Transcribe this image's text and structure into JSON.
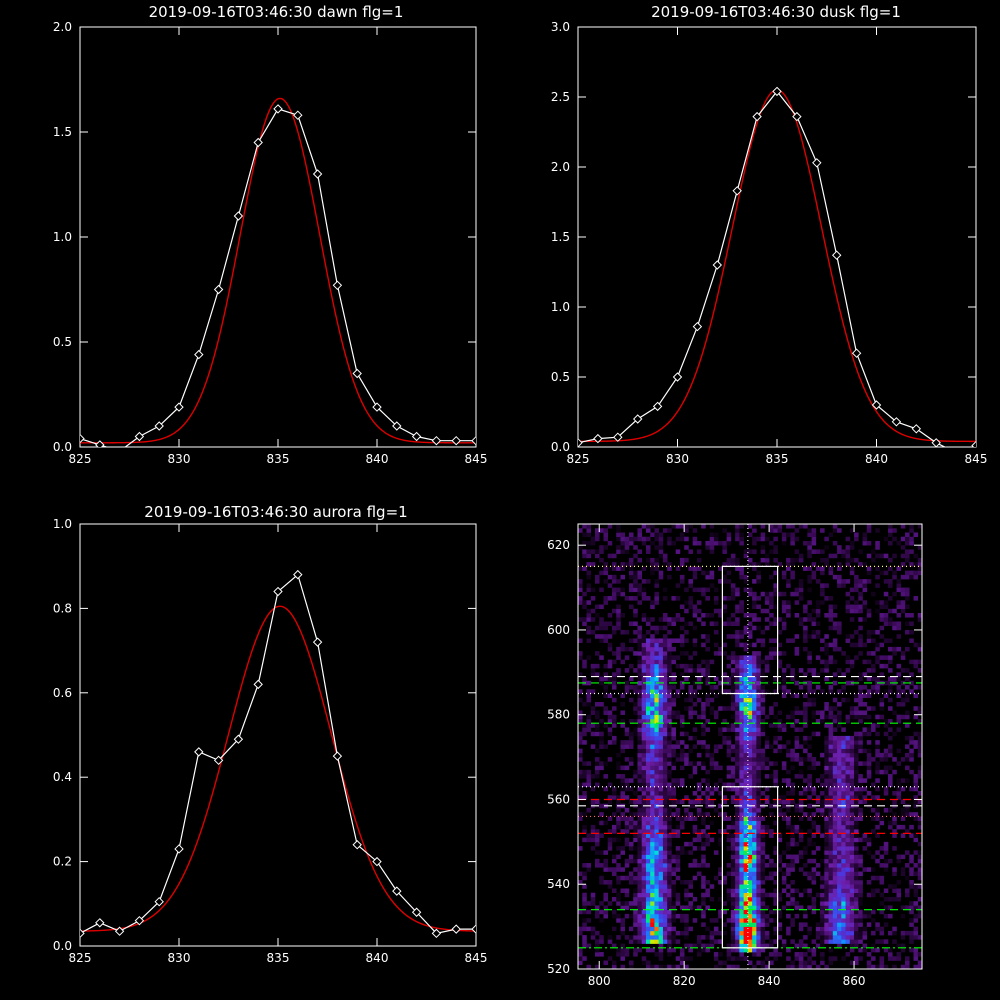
{
  "chart_data": [
    {
      "type": "line",
      "title": "2019-09-16T03:46:30 dawn flg=1",
      "xlim": [
        825,
        845
      ],
      "ylim": [
        0,
        2.0
      ],
      "x_ticks": [
        825,
        830,
        835,
        840,
        845
      ],
      "y_ticks": [
        0.0,
        0.5,
        1.0,
        1.5,
        2.0
      ],
      "y_tick_labels": [
        "0.0",
        "0.5",
        "1.0",
        "1.5",
        "2.0"
      ],
      "series": [
        {
          "kind": "data",
          "color": "#ffffff",
          "marker": "diamond",
          "x": [
            825,
            826,
            827,
            828,
            829,
            830,
            831,
            832,
            833,
            834,
            835,
            836,
            837,
            838,
            839,
            840,
            841,
            842,
            843,
            844,
            845
          ],
          "y": [
            0.04,
            0.01,
            -0.02,
            0.05,
            0.1,
            0.19,
            0.44,
            0.75,
            1.1,
            1.45,
            1.61,
            1.58,
            1.3,
            0.77,
            0.35,
            0.19,
            0.1,
            0.05,
            0.03,
            0.03,
            0.03
          ]
        },
        {
          "kind": "fit",
          "color": "#dd0000",
          "center": 835.1,
          "amplitude": 1.64,
          "sigma": 2.0,
          "baseline": 0.02
        }
      ]
    },
    {
      "type": "line",
      "title": "2019-09-16T03:46:30 dusk flg=1",
      "xlim": [
        825,
        845
      ],
      "ylim": [
        0,
        3.0
      ],
      "x_ticks": [
        825,
        830,
        835,
        840,
        845
      ],
      "y_ticks": [
        0.0,
        0.5,
        1.0,
        1.5,
        2.0,
        2.5,
        3.0
      ],
      "y_tick_labels": [
        "0.0",
        "0.5",
        "1.0",
        "1.5",
        "2.0",
        "2.5",
        "3.0"
      ],
      "series": [
        {
          "kind": "data",
          "color": "#ffffff",
          "marker": "diamond",
          "x": [
            825,
            826,
            827,
            828,
            829,
            830,
            831,
            832,
            833,
            834,
            835,
            836,
            837,
            838,
            839,
            840,
            841,
            842,
            843,
            844,
            845
          ],
          "y": [
            0.03,
            0.06,
            0.07,
            0.2,
            0.29,
            0.5,
            0.86,
            1.3,
            1.83,
            2.36,
            2.54,
            2.36,
            2.03,
            1.37,
            0.67,
            0.3,
            0.18,
            0.13,
            0.03,
            -0.04,
            0.01
          ]
        },
        {
          "kind": "fit",
          "color": "#dd0000",
          "center": 835.0,
          "amplitude": 2.51,
          "sigma": 2.25,
          "baseline": 0.04
        }
      ]
    },
    {
      "type": "line",
      "title": "2019-09-16T03:46:30 aurora flg=1",
      "xlim": [
        825,
        845
      ],
      "ylim": [
        0,
        1.0
      ],
      "x_ticks": [
        825,
        830,
        835,
        840,
        845
      ],
      "y_ticks": [
        0.0,
        0.2,
        0.4,
        0.6,
        0.8,
        1.0
      ],
      "y_tick_labels": [
        "0.0",
        "0.2",
        "0.4",
        "0.6",
        "0.8",
        "1.0"
      ],
      "series": [
        {
          "kind": "data",
          "color": "#ffffff",
          "marker": "diamond",
          "x": [
            825,
            826,
            827,
            828,
            829,
            830,
            831,
            832,
            833,
            834,
            835,
            836,
            837,
            838,
            839,
            840,
            841,
            842,
            843,
            844,
            845
          ],
          "y": [
            0.03,
            0.055,
            0.035,
            0.06,
            0.105,
            0.23,
            0.46,
            0.44,
            0.49,
            0.62,
            0.84,
            0.88,
            0.72,
            0.45,
            0.24,
            0.2,
            0.13,
            0.08,
            0.03,
            0.04,
            0.04
          ]
        },
        {
          "kind": "fit",
          "color": "#dd0000",
          "center": 835.1,
          "amplitude": 0.77,
          "sigma": 2.6,
          "baseline": 0.035
        }
      ]
    },
    {
      "type": "heatmap",
      "title": "",
      "xlim": [
        795,
        876
      ],
      "ylim": [
        520,
        625
      ],
      "x_ticks": [
        800,
        820,
        840,
        860
      ],
      "y_ticks": [
        520,
        540,
        560,
        580,
        600,
        620
      ],
      "colormap": "rainbow",
      "columns": [
        {
          "center": 813,
          "width": 3.5,
          "y_range": [
            526,
            598
          ],
          "peaks": [
            {
              "y": 529,
              "amp": 0.55
            },
            {
              "y": 582,
              "amp": 0.45
            },
            {
              "y": 545,
              "amp": 0.3
            }
          ]
        },
        {
          "center": 835,
          "width": 2.8,
          "y_range": [
            524,
            594
          ],
          "peaks": [
            {
              "y": 530,
              "amp": 1.0
            },
            {
              "y": 584,
              "amp": 0.5
            },
            {
              "y": 548,
              "amp": 0.6
            }
          ]
        },
        {
          "center": 857,
          "width": 4.0,
          "y_range": [
            526,
            575
          ],
          "peaks": [
            {
              "y": 530,
              "amp": 0.25
            }
          ]
        }
      ],
      "vertical_line": {
        "x": 835,
        "color": "#ffffff",
        "style": "dotted"
      },
      "boxes": [
        {
          "x": [
            829,
            842
          ],
          "y": [
            585,
            615
          ],
          "color": "#ffffff"
        },
        {
          "x": [
            829,
            842
          ],
          "y": [
            525,
            563
          ],
          "color": "#ffffff"
        }
      ],
      "hlines": [
        {
          "y": 615,
          "color": "#ffff66",
          "style": "dotted"
        },
        {
          "y": 589,
          "color": "#ffffff",
          "style": "dashed"
        },
        {
          "y": 587.5,
          "color": "#00ff00",
          "style": "dashed"
        },
        {
          "y": 585,
          "color": "#ffffff",
          "style": "dotted"
        },
        {
          "y": 578,
          "color": "#00ff00",
          "style": "dashed"
        },
        {
          "y": 563,
          "color": "#ffffff",
          "style": "dotted"
        },
        {
          "y": 560,
          "color": "#ff0000",
          "style": "dashed"
        },
        {
          "y": 558.5,
          "color": "#ffffff",
          "style": "dashed"
        },
        {
          "y": 556,
          "color": "#ff6666",
          "style": "dotted"
        },
        {
          "y": 552,
          "color": "#ff0000",
          "style": "dashed"
        },
        {
          "y": 534,
          "color": "#00ff00",
          "style": "dashed"
        },
        {
          "y": 525,
          "color": "#00ff00",
          "style": "dashdot"
        }
      ]
    }
  ]
}
